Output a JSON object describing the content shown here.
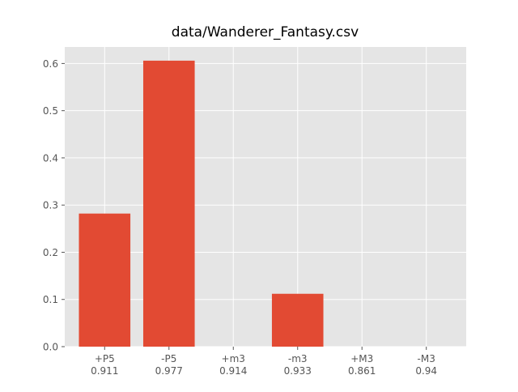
{
  "chart_data": {
    "type": "bar",
    "title": "data/Wanderer_Fantasy.csv",
    "categories": [
      "+P5\n0.911",
      "-P5\n0.977",
      "+m3\n0.914",
      "-m3\n0.933",
      "+M3\n0.861",
      "-M3\n0.94"
    ],
    "category_lines": [
      [
        "+P5",
        "0.911"
      ],
      [
        "-P5",
        "0.977"
      ],
      [
        "+m3",
        "0.914"
      ],
      [
        "-m3",
        "0.933"
      ],
      [
        "+M3",
        "0.861"
      ],
      [
        "-M3",
        "0.94"
      ]
    ],
    "values": [
      0.282,
      0.606,
      0.0,
      0.112,
      0.0,
      0.0
    ],
    "ylim": [
      0,
      0.635
    ],
    "yticks": [
      "0.0",
      "0.1",
      "0.2",
      "0.3",
      "0.4",
      "0.5",
      "0.6"
    ],
    "ytick_values": [
      0.0,
      0.1,
      0.2,
      0.3,
      0.4,
      0.5,
      0.6
    ],
    "xlabel": "",
    "ylabel": "",
    "grid": true,
    "style": "ggplot",
    "colors": {
      "bar": "#E24A33",
      "plot_bg": "#E5E5E5",
      "grid": "#FFFFFF",
      "tick_text": "#555555"
    }
  }
}
